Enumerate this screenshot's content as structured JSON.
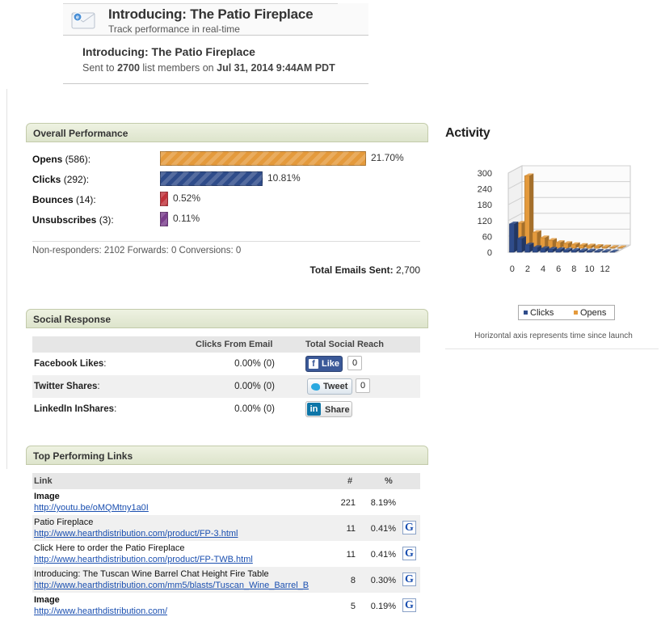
{
  "header": {
    "title": "Introducing: The Patio Fireplace",
    "subtitle": "Track performance in real-time",
    "card_title": "Introducing: The Patio Fireplace",
    "sent_prefix": "Sent to",
    "sent_count": "2700",
    "sent_mid": "list members on",
    "sent_date": "Jul 31, 2014 9:44AM PDT"
  },
  "overall": {
    "heading": "Overall Performance",
    "metrics": [
      {
        "name": "Opens",
        "count": "(586):",
        "pct": "21.70%",
        "value": 21.7,
        "color": "#e49a3c"
      },
      {
        "name": "Clicks",
        "count": "(292):",
        "pct": "10.81%",
        "value": 10.81,
        "color": "#2f4c8a"
      },
      {
        "name": "Bounces",
        "count": "(14):",
        "pct": "0.52%",
        "value": 0.52,
        "color": "#c0323a"
      },
      {
        "name": "Unsubscribes",
        "count": "(3):",
        "pct": "0.11%",
        "value": 0.11,
        "color": "#7a3e8c"
      }
    ],
    "non_responders": "Non-responders: 2102 Forwards: 0 Conversions: 0",
    "total_label": "Total Emails Sent:",
    "total_value": "2,700"
  },
  "social": {
    "heading": "Social Response",
    "col_clicks": "Clicks From Email",
    "col_reach": "Total Social Reach",
    "rows": [
      {
        "name": "Facebook Likes",
        "suffix": ":",
        "value": "0.00% (0)",
        "button": "Like",
        "count": "0"
      },
      {
        "name": "Twitter Shares",
        "suffix": ":",
        "value": "0.00% (0)",
        "button": "Tweet",
        "count": "0"
      },
      {
        "name": "LinkedIn InShares",
        "suffix": ":",
        "value": "0.00% (0)",
        "button": "Share",
        "count": ""
      }
    ]
  },
  "links": {
    "heading": "Top Performing Links",
    "col_link": "Link",
    "col_num": "#",
    "col_pct": "%",
    "rows": [
      {
        "title": "Image",
        "bold": true,
        "url": "http://youtu.be/oMQMtny1a0I",
        "num": "221",
        "pct": "8.19%",
        "google": false
      },
      {
        "title": "Patio Fireplace",
        "bold": false,
        "url": "http://www.hearthdistribution.com/product/FP-3.html",
        "num": "11",
        "pct": "0.41%",
        "google": true
      },
      {
        "title": "Click Here to order the Patio Fireplace",
        "bold": false,
        "url": "http://www.hearthdistribution.com/product/FP-TWB.html",
        "num": "11",
        "pct": "0.41%",
        "google": true
      },
      {
        "title": "Introducing: The Tuscan Wine Barrel Chat Height Fire Table",
        "bold": false,
        "url": "http://www.hearthdistribution.com/mm5/blasts/Tuscan_Wine_Barrel_B",
        "num": "8",
        "pct": "0.30%",
        "google": true
      },
      {
        "title": "Image",
        "bold": true,
        "url": "http://www.hearthdistribution.com/",
        "num": "5",
        "pct": "0.19%",
        "google": true
      }
    ],
    "google_glyph": "G"
  },
  "activity": {
    "title": "Activity",
    "note": "Horizontal axis represents time since launch",
    "legend_clicks": "Clicks",
    "legend_opens": "Opens"
  },
  "chart_data": {
    "type": "bar",
    "title": "Activity",
    "subtitle": "Horizontal axis represents time since launch",
    "xlabel": "",
    "ylabel": "",
    "x": [
      0,
      1,
      2,
      3,
      4,
      5,
      6,
      7,
      8,
      9,
      10,
      11,
      12,
      13
    ],
    "x_tick_labels": [
      "0",
      "2",
      "4",
      "6",
      "8",
      "10",
      "12"
    ],
    "y_tick_labels": [
      "0",
      "60",
      "120",
      "180",
      "240",
      "300"
    ],
    "ylim": [
      0,
      300
    ],
    "three_d": true,
    "series": [
      {
        "name": "Clicks",
        "color": "#2f4c8a",
        "values": [
          108,
          52,
          28,
          18,
          14,
          12,
          10,
          8,
          7,
          6,
          5,
          4,
          3,
          2
        ]
      },
      {
        "name": "Opens",
        "color": "#e49a3c",
        "values": [
          95,
          275,
          60,
          40,
          30,
          22,
          18,
          14,
          11,
          9,
          7,
          5,
          3,
          2
        ]
      }
    ],
    "legend": "bottom",
    "grid": true
  }
}
